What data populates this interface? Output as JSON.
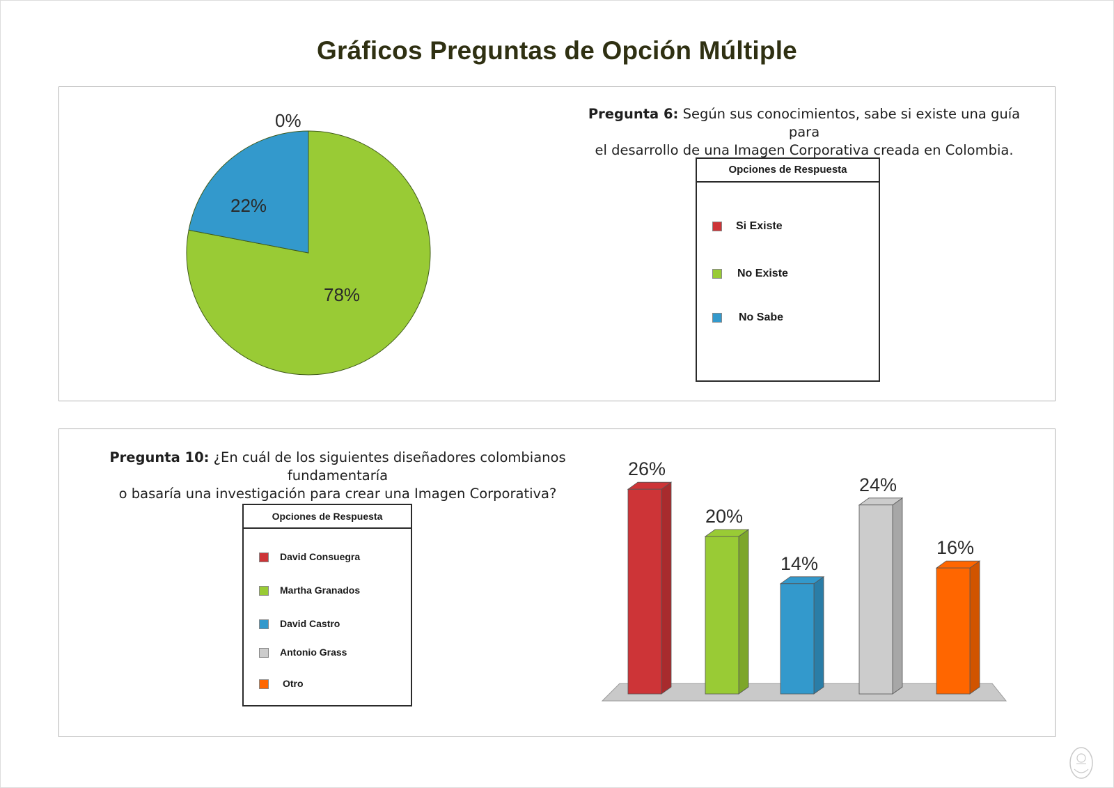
{
  "page": {
    "title": "Gráficos Preguntas de Opción Múltiple"
  },
  "colors": {
    "red": "#cd3437",
    "green": "#99cb35",
    "blue": "#3399cc",
    "gray": "#cccccc",
    "orange": "#ff6600",
    "title": "#2f3012"
  },
  "question6": {
    "number": "Pregunta 6:",
    "text_line1": "Según sus conocimientos, sabe si existe una guía para",
    "text_line2": "el desarrollo de una Imagen Corporativa creada en Colombia.",
    "legend": {
      "header": "Opciones de Respuesta",
      "items": [
        {
          "label": "Si Existe",
          "color": "#cd3437"
        },
        {
          "label": "No Existe",
          "color": "#99cb35"
        },
        {
          "label": "No Sabe",
          "color": "#3399cc"
        }
      ]
    }
  },
  "question10": {
    "number": "Pregunta 10:",
    "text_line1": "¿En cuál de los siguientes diseñadores colombianos  fundamentaría",
    "text_line2": "o basaría una investigación para crear una Imagen Corporativa?",
    "legend": {
      "header": "Opciones de Respuesta",
      "items": [
        {
          "label": "David Consuegra",
          "color": "#cd3437"
        },
        {
          "label": "Martha Granados",
          "color": "#99cb35"
        },
        {
          "label": "David Castro",
          "color": "#3399cc"
        },
        {
          "label": "Antonio Grass",
          "color": "#cccccc"
        },
        {
          "label": "Otro",
          "color": "#ff6600"
        }
      ]
    }
  },
  "chart_data": [
    {
      "type": "pie",
      "categories": [
        "Si Existe",
        "No Existe",
        "No Sabe"
      ],
      "values": [
        0,
        78,
        22
      ],
      "data_labels": [
        "0%",
        "78%",
        "22%"
      ],
      "colors": [
        "#cd3437",
        "#99cb35",
        "#3399cc"
      ],
      "legend": "right"
    },
    {
      "type": "bar",
      "categories": [
        "David Consuegra",
        "Martha Granados",
        "David Castro",
        "Antonio Grass",
        "Otro"
      ],
      "values": [
        26,
        20,
        14,
        24,
        16
      ],
      "data_labels": [
        "26%",
        "20%",
        "14%",
        "24%",
        "16%"
      ],
      "colors": [
        "#cd3437",
        "#99cb35",
        "#3399cc",
        "#cccccc",
        "#ff6600"
      ],
      "legend": "left",
      "grid": false
    }
  ]
}
